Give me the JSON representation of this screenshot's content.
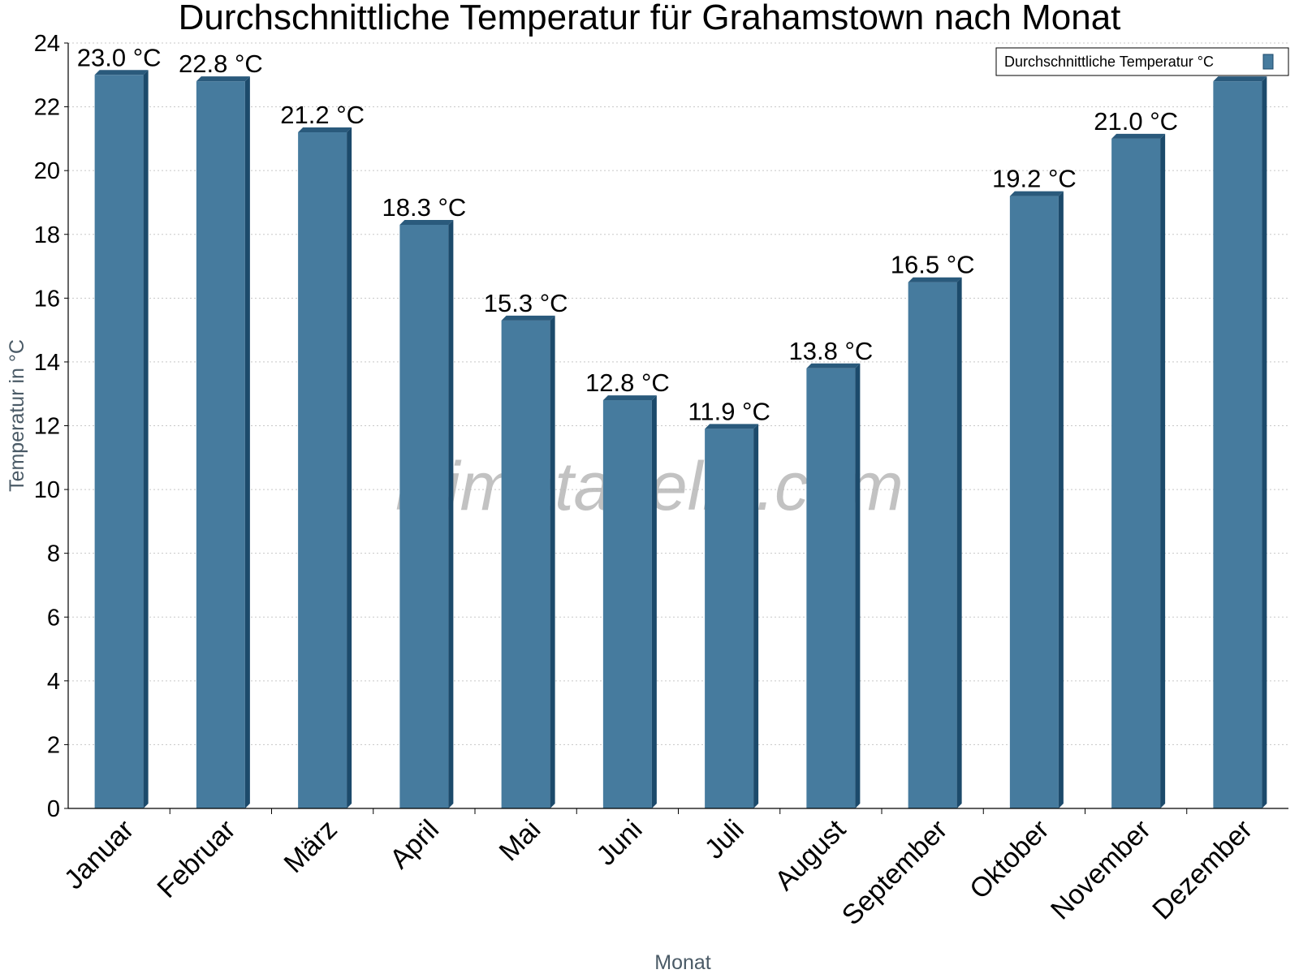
{
  "chart_data": {
    "type": "bar",
    "title": "Durchschnittliche Temperatur für Grahamstown nach Monat",
    "xlabel": "Monat",
    "ylabel": "Temperatur in °C",
    "ylim": [
      0,
      24
    ],
    "yticks": [
      0,
      2,
      4,
      6,
      8,
      10,
      12,
      14,
      16,
      18,
      20,
      22,
      24
    ],
    "grid": true,
    "legend_position": "top-right",
    "categories": [
      "Januar",
      "Februar",
      "März",
      "April",
      "Mai",
      "Juni",
      "Juli",
      "August",
      "September",
      "Oktober",
      "November",
      "Dezember"
    ],
    "series": [
      {
        "name": "Durchschnittliche Temperatur °C",
        "values": [
          23.0,
          22.8,
          21.2,
          18.3,
          15.3,
          12.8,
          11.9,
          13.8,
          16.5,
          19.2,
          21.0,
          22.8
        ],
        "data_labels": [
          "23.0 °C",
          "22.8 °C",
          "21.2 °C",
          "18.3 °C",
          "15.3 °C",
          "12.8 °C",
          "11.9 °C",
          "13.8 °C",
          "16.5 °C",
          "19.2 °C",
          "21.0 °C",
          ""
        ]
      }
    ],
    "colors": {
      "bar_front": "#467b9e",
      "bar_side": "#1c4a6b",
      "bar_top": "#2a5a7c",
      "grid": "#c8c8c8"
    },
    "watermark": "klimatabelle.com"
  }
}
